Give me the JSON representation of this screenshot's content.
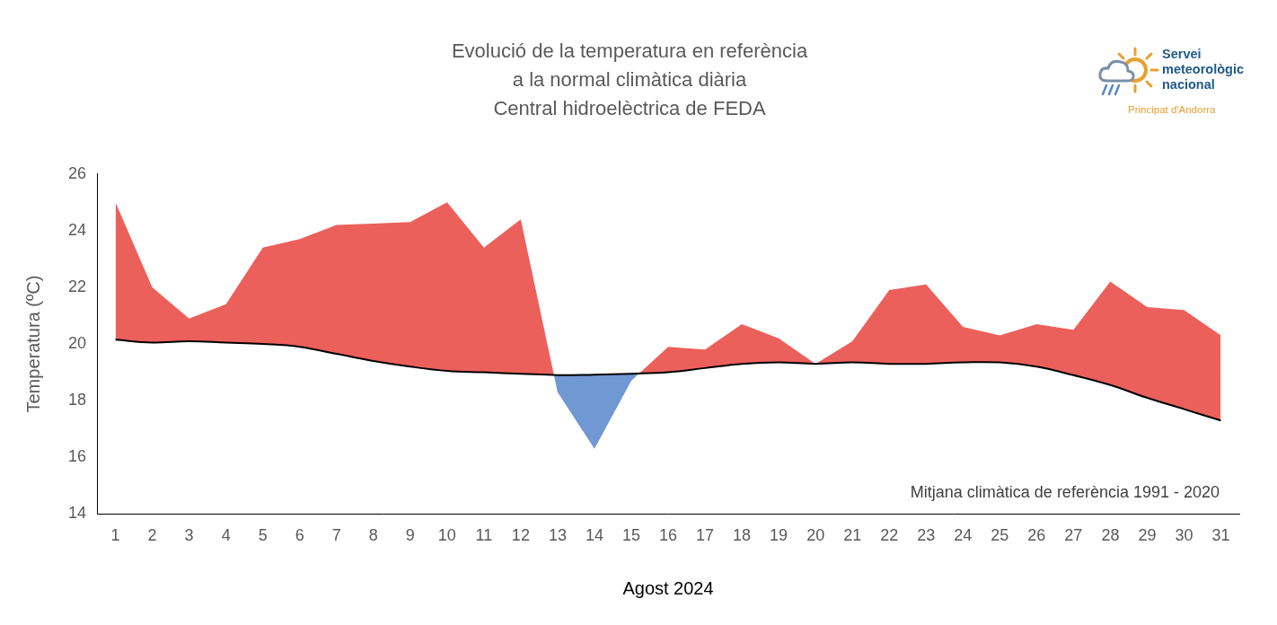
{
  "chart_data": {
    "type": "line",
    "title": [
      "Evolució de la temperatura en referència",
      "a la normal climàtica diària",
      "Central hidroelèctrica de FEDA"
    ],
    "x_label": "Agost 2024",
    "y_label": "Temperatura (ºC)",
    "annotation": "Mitjana climàtica de referència 1991 - 2020",
    "logo": {
      "lines": [
        "Servei",
        "meteorològic",
        "nacional"
      ],
      "subtitle": "Principat d'Andorra"
    },
    "categories": [
      "1",
      "2",
      "3",
      "4",
      "5",
      "6",
      "7",
      "8",
      "9",
      "10",
      "11",
      "12",
      "13",
      "14",
      "15",
      "16",
      "17",
      "18",
      "19",
      "20",
      "21",
      "22",
      "23",
      "24",
      "25",
      "26",
      "27",
      "28",
      "29",
      "30",
      "31"
    ],
    "series": [
      {
        "type": "area",
        "color": "#ec605c",
        "values": [
          25.0,
          22.0,
          20.9,
          21.4,
          23.4,
          23.7,
          24.2,
          24.25,
          24.3,
          25.0,
          23.4,
          24.4,
          18.3,
          16.3,
          18.7,
          19.9,
          19.8,
          20.7,
          20.2,
          19.3,
          20.1,
          21.9,
          22.1,
          20.6,
          20.3,
          20.7,
          20.5,
          22.2,
          21.3,
          21.2,
          20.3
        ]
      },
      {
        "type": "line",
        "color": "#000000",
        "values": [
          20.15,
          20.05,
          20.1,
          20.05,
          20.0,
          19.9,
          19.65,
          19.4,
          19.2,
          19.05,
          19.0,
          18.95,
          18.9,
          18.92,
          18.95,
          19.0,
          19.15,
          19.3,
          19.35,
          19.3,
          19.35,
          19.3,
          19.3,
          19.35,
          19.35,
          19.2,
          18.9,
          18.55,
          18.1,
          17.7,
          17.3
        ]
      }
    ],
    "ylim": [
      14,
      26
    ],
    "yticks": [
      14,
      16,
      18,
      20,
      22,
      24,
      26
    ],
    "grid": false
  }
}
